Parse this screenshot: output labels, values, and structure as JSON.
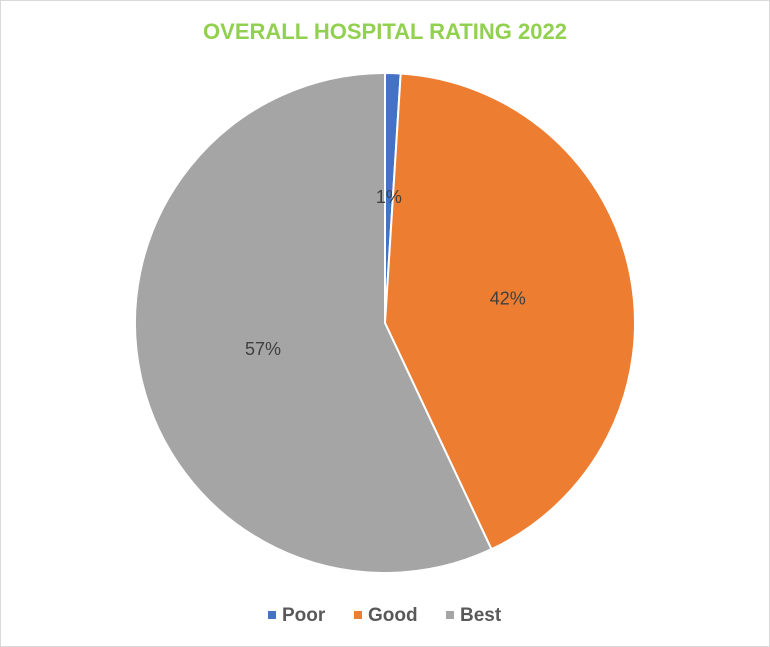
{
  "chart_data": {
    "type": "pie",
    "title": "OVERALL HOSPITAL RATING 2022",
    "categories": [
      "Poor",
      "Good",
      "Best"
    ],
    "values": [
      1,
      42,
      57
    ],
    "value_labels": [
      "1%",
      "42%",
      "57%"
    ],
    "colors": [
      "#4472c4",
      "#ed7d31",
      "#a5a5a5"
    ],
    "legend": "bottom"
  }
}
